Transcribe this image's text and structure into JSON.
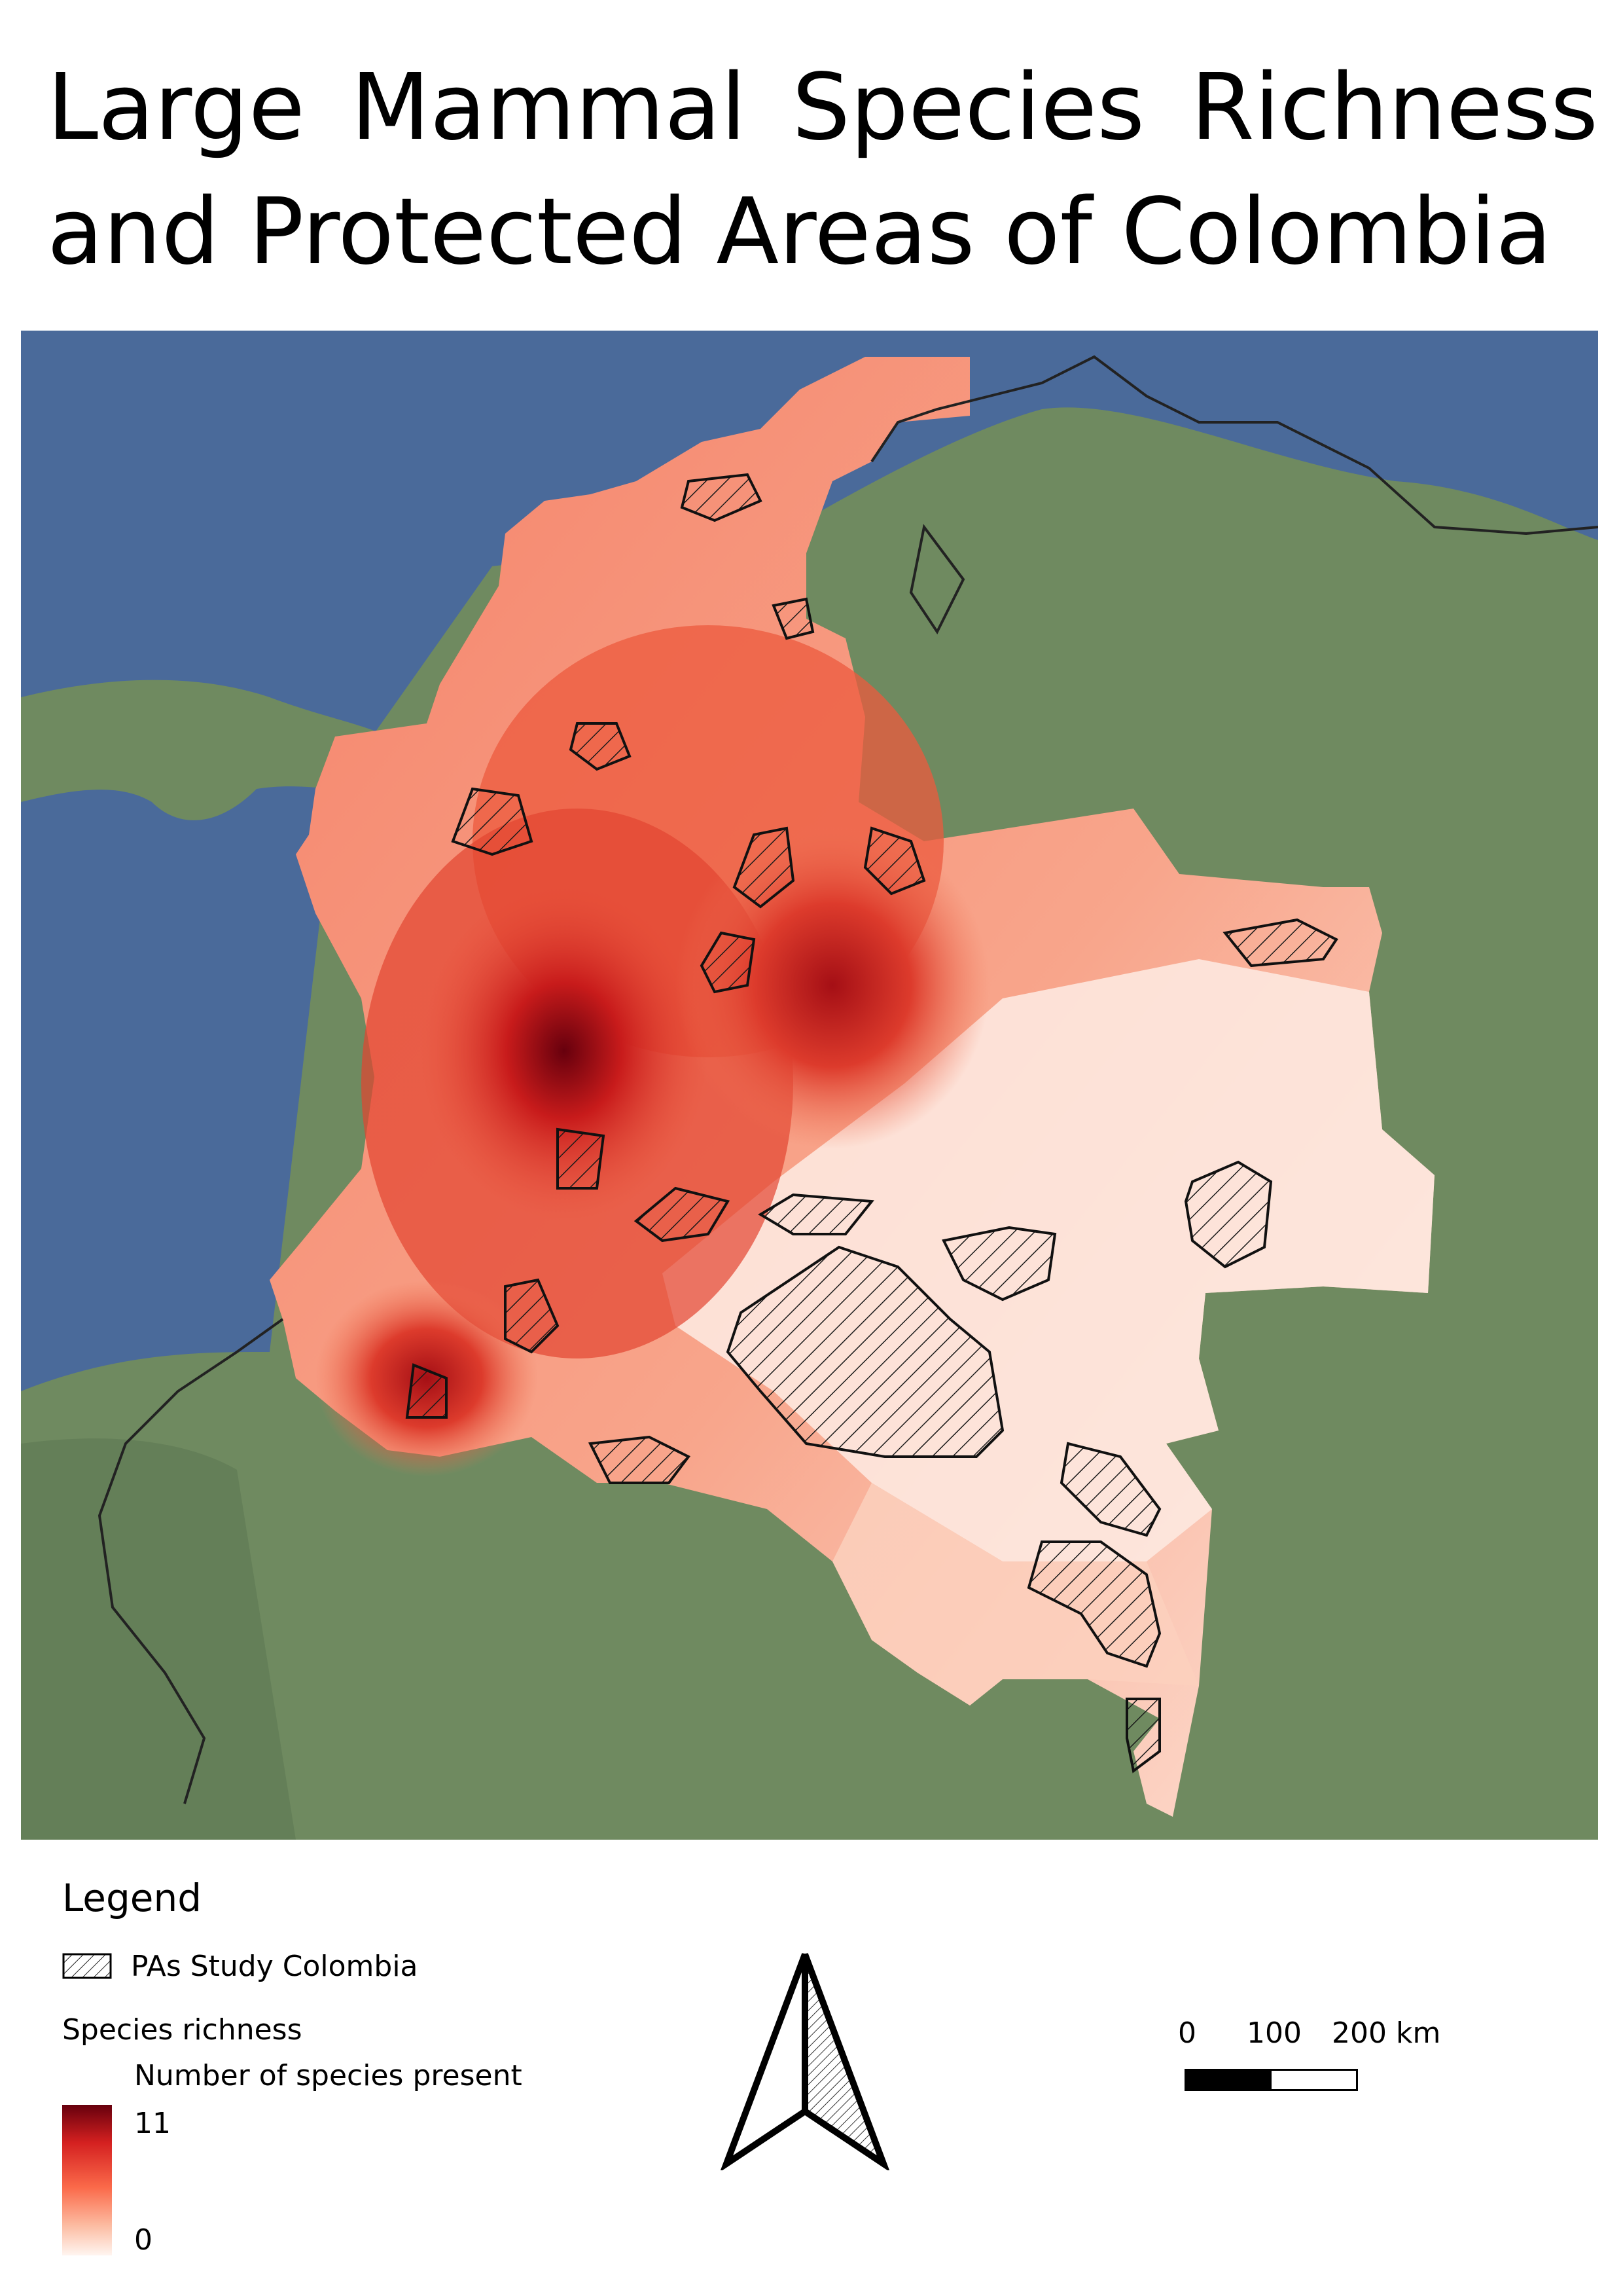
{
  "title": {
    "line1_words": [
      "Large",
      "Mammal",
      "Species",
      "Richness"
    ],
    "line2": "and Protected Areas of Colombia"
  },
  "legend": {
    "heading": "Legend",
    "pa_label": "PAs Study Colombia",
    "richness_title": "Species richness",
    "richness_subtitle": "Number of species present",
    "max_value": "11",
    "min_value": "0",
    "ramp_colors": [
      "#67000d",
      "#d42020",
      "#fb6a4a",
      "#fcbba1",
      "#fff5f0"
    ]
  },
  "scale_bar": {
    "labels": [
      "0",
      "100",
      "200 km"
    ]
  },
  "colors": {
    "ocean": "#4a6a9a",
    "land": "#6f8a60",
    "border": "#222222"
  },
  "icons": {
    "north_arrow": "north-arrow-icon",
    "hatch_pattern": "diagonal-hatch"
  }
}
